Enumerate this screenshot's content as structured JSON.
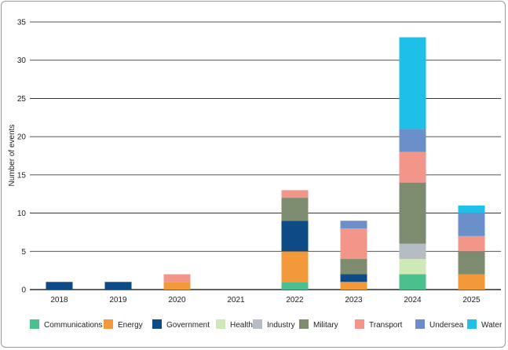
{
  "chart_data": {
    "type": "bar",
    "stacked": true,
    "categories": [
      "2018",
      "2019",
      "2020",
      "2021",
      "2022",
      "2023",
      "2024",
      "2025"
    ],
    "ylabel": "Number of events",
    "ylim": [
      0,
      35
    ],
    "yticks": [
      0,
      5,
      10,
      15,
      20,
      25,
      30,
      35
    ],
    "grid": true,
    "legend_position": "bottom",
    "series": [
      {
        "name": "Communications",
        "color": "#4cbf8f",
        "values": [
          0,
          0,
          0,
          0,
          1,
          0,
          2,
          0
        ]
      },
      {
        "name": "Energy",
        "color": "#f29a3a",
        "values": [
          0,
          0,
          1,
          0,
          4,
          1,
          0,
          2
        ]
      },
      {
        "name": "Government",
        "color": "#0d4a86",
        "values": [
          1,
          1,
          0,
          0,
          4,
          1,
          0,
          0
        ]
      },
      {
        "name": "Health",
        "color": "#cfe8b8",
        "values": [
          0,
          0,
          0,
          0,
          0,
          0,
          2,
          0
        ]
      },
      {
        "name": "Industry",
        "color": "#b5bcc3",
        "values": [
          0,
          0,
          0,
          0,
          0,
          0,
          2,
          0
        ]
      },
      {
        "name": "Military",
        "color": "#7d8b6f",
        "values": [
          0,
          0,
          0,
          0,
          3,
          2,
          8,
          3
        ]
      },
      {
        "name": "Transport",
        "color": "#f3968a",
        "values": [
          0,
          0,
          1,
          0,
          1,
          4,
          4,
          2
        ]
      },
      {
        "name": "Undersea",
        "color": "#6a8fc9",
        "values": [
          0,
          0,
          0,
          0,
          0,
          1,
          3,
          3
        ]
      },
      {
        "name": "Water",
        "color": "#1fc0e8",
        "values": [
          0,
          0,
          0,
          0,
          0,
          0,
          12,
          1
        ]
      }
    ]
  }
}
